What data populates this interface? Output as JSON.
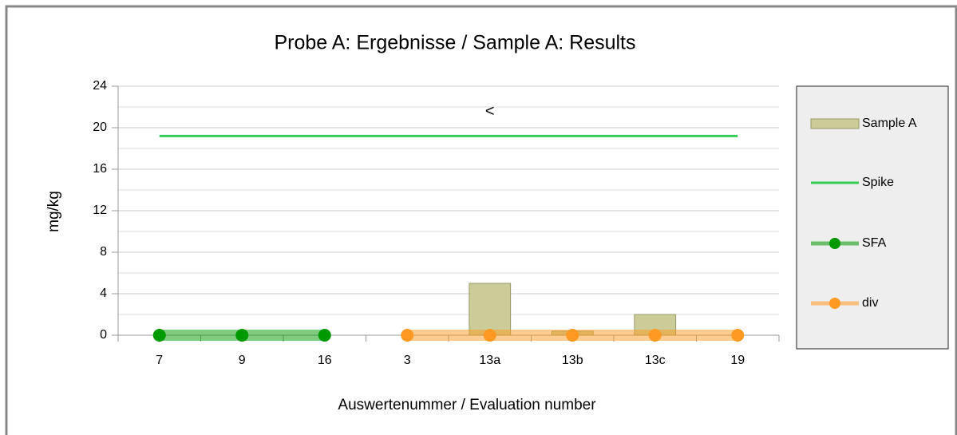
{
  "chart_data": {
    "type": "bar",
    "title": "Probe A: Ergebnisse / Sample A: Results",
    "x_label": "Auswertenummer / Evaluation number",
    "y_label": "mg/kg",
    "categories": [
      "7",
      "9",
      "16",
      "3",
      "13a",
      "13b",
      "13c",
      "19"
    ],
    "series": [
      {
        "name": "Sample A",
        "type": "bar",
        "color": "#cccc99",
        "values": [
          null,
          null,
          null,
          null,
          5,
          0.4,
          2,
          null
        ]
      },
      {
        "name": "Spike",
        "type": "line",
        "color": "#33cc55",
        "values": [
          19.2,
          19.2,
          19.2,
          19.2,
          19.2,
          19.2,
          19.2,
          19.2
        ]
      },
      {
        "name": "SFA",
        "type": "line-marker",
        "color": "#009900",
        "values": [
          0,
          0,
          0,
          null,
          null,
          null,
          null,
          null
        ]
      },
      {
        "name": "div",
        "type": "line-marker",
        "color": "#ff9922",
        "values": [
          null,
          null,
          null,
          0,
          0,
          0,
          0,
          0
        ]
      }
    ],
    "annotations": [
      {
        "text": "<",
        "category": "13a"
      }
    ],
    "ylim": [
      0,
      24
    ],
    "yticks": [
      0,
      4,
      8,
      12,
      16,
      20,
      24
    ],
    "yminorticks": [
      2,
      6,
      10,
      14,
      18,
      22
    ],
    "grid": true,
    "legend": "right"
  }
}
